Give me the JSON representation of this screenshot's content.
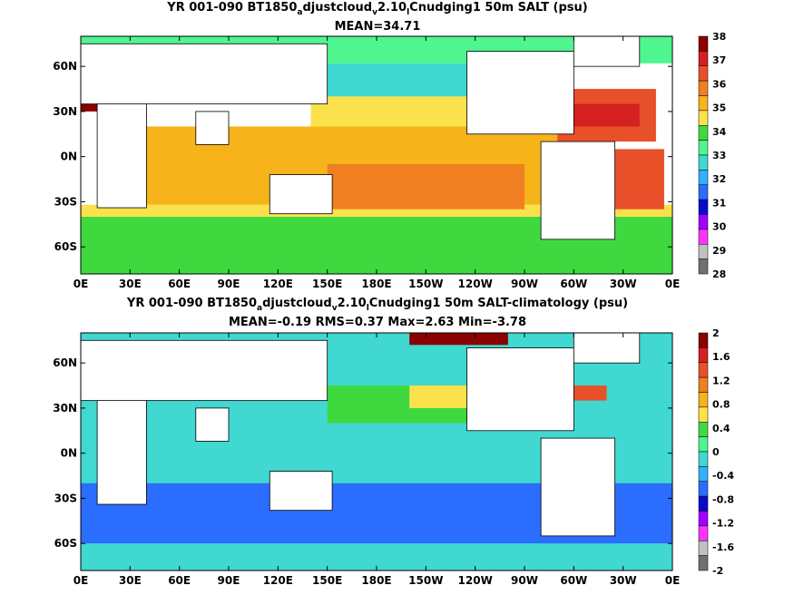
{
  "chart_data": [
    {
      "type": "heatmap",
      "title_parts": [
        "YR 001-090 BT1850",
        "a",
        "djustcloud",
        "v",
        "2.10",
        "l",
        "Cnudging1 50m SALT (psu)"
      ],
      "subtitle": "MEAN=34.71",
      "x_tick_labels": [
        "0E",
        "30E",
        "60E",
        "90E",
        "120E",
        "150E",
        "180E",
        "150W",
        "120W",
        "90W",
        "60W",
        "30W",
        "0E"
      ],
      "y_tick_labels": [
        "60N",
        "30N",
        "0N",
        "30S",
        "60S"
      ],
      "y_tick_values": [
        60,
        30,
        0,
        -30,
        -60
      ],
      "xlim": [
        0,
        360
      ],
      "ylim": [
        -78,
        80
      ],
      "colorbar_levels": [
        "38",
        "37",
        "36",
        "35",
        "34",
        "33",
        "32",
        "31",
        "30",
        "29",
        "28"
      ],
      "colorbar_colors": [
        "#8b0000",
        "#d42020",
        "#e8502a",
        "#f07f22",
        "#f7b31a",
        "#fbe14c",
        "#3fd93f",
        "#4ff58f",
        "#40d8d0",
        "#30b0ff",
        "#2a6dff",
        "#0a0acc",
        "#a000ff",
        "#ff33ff",
        "#c0c0c0",
        "#707070"
      ],
      "colorbar_boxes": 16,
      "regions": [
        {
          "lon": [
            0,
            360
          ],
          "lat": [
            -78,
            -40
          ],
          "value": 34.0
        },
        {
          "lon": [
            0,
            360
          ],
          "lat": [
            -40,
            -32
          ],
          "value": 34.6
        },
        {
          "lon": [
            40,
            290
          ],
          "lat": [
            -32,
            20
          ],
          "value": 34.9
        },
        {
          "lon": [
            150,
            270
          ],
          "lat": [
            -35,
            -5
          ],
          "value": 35.6
        },
        {
          "lon": [
            50,
            100
          ],
          "lat": [
            -30,
            -5
          ],
          "value": 35.5
        },
        {
          "lon": [
            140,
            250
          ],
          "lat": [
            20,
            40
          ],
          "value": 34.8
        },
        {
          "lon": [
            150,
            240
          ],
          "lat": [
            40,
            62
          ],
          "value": 33.0
        },
        {
          "lon": [
            290,
            350
          ],
          "lat": [
            10,
            45
          ],
          "value": 36.6
        },
        {
          "lon": [
            300,
            340
          ],
          "lat": [
            20,
            35
          ],
          "value": 37.2
        },
        {
          "lon": [
            320,
            355
          ],
          "lat": [
            -35,
            5
          ],
          "value": 36.2
        },
        {
          "lon": [
            0,
            360
          ],
          "lat": [
            62,
            80
          ],
          "value": 33.2
        },
        {
          "lon": [
            0,
            30
          ],
          "lat": [
            30,
            45
          ],
          "value": 38.0
        }
      ],
      "land": [
        {
          "lon": [
            10,
            40
          ],
          "lat": [
            -34,
            35
          ]
        },
        {
          "lon": [
            0,
            150
          ],
          "lat": [
            35,
            75
          ]
        },
        {
          "lon": [
            70,
            90
          ],
          "lat": [
            8,
            30
          ]
        },
        {
          "lon": [
            115,
            153
          ],
          "lat": [
            -38,
            -12
          ]
        },
        {
          "lon": [
            235,
            300
          ],
          "lat": [
            15,
            70
          ]
        },
        {
          "lon": [
            280,
            325
          ],
          "lat": [
            -55,
            10
          ]
        },
        {
          "lon": [
            300,
            340
          ],
          "lat": [
            60,
            80
          ]
        }
      ]
    },
    {
      "type": "heatmap",
      "title_parts": [
        "YR 001-090 BT1850",
        "a",
        "djustcloud",
        "v",
        "2.10",
        "l",
        "Cnudging1 50m SALT-climatology (psu)"
      ],
      "subtitle": "MEAN=-0.19   RMS=0.37   Max=2.63   Min=-3.78",
      "x_tick_labels": [
        "0E",
        "30E",
        "60E",
        "90E",
        "120E",
        "150E",
        "180E",
        "150W",
        "120W",
        "90W",
        "60W",
        "30W",
        "0E"
      ],
      "y_tick_labels": [
        "60N",
        "30N",
        "0N",
        "30S",
        "60S"
      ],
      "y_tick_values": [
        60,
        30,
        0,
        -30,
        -60
      ],
      "xlim": [
        0,
        360
      ],
      "ylim": [
        -78,
        80
      ],
      "colorbar_levels": [
        "2",
        "1.6",
        "1.2",
        "0.8",
        "0.4",
        "0",
        "-0.4",
        "-0.8",
        "-1.2",
        "-1.6",
        "-2"
      ],
      "colorbar_colors": [
        "#8b0000",
        "#d42020",
        "#e8502a",
        "#f07f22",
        "#f7b31a",
        "#fbe14c",
        "#3fd93f",
        "#4ff58f",
        "#40d8d0",
        "#30b0ff",
        "#2a6dff",
        "#0a0acc",
        "#a000ff",
        "#ff33ff",
        "#c0c0c0",
        "#707070"
      ],
      "colorbar_boxes": 20,
      "regions": [
        {
          "lon": [
            0,
            360
          ],
          "lat": [
            -78,
            80
          ],
          "value": -0.15
        },
        {
          "lon": [
            0,
            360
          ],
          "lat": [
            -60,
            -20
          ],
          "value": -0.5
        },
        {
          "lon": [
            40,
            280
          ],
          "lat": [
            -15,
            15
          ],
          "value": -0.1
        },
        {
          "lon": [
            150,
            270
          ],
          "lat": [
            20,
            45
          ],
          "value": 0.3
        },
        {
          "lon": [
            200,
            250
          ],
          "lat": [
            30,
            45
          ],
          "value": 0.6
        },
        {
          "lon": [
            200,
            260
          ],
          "lat": [
            72,
            80
          ],
          "value": 1.8
        },
        {
          "lon": [
            290,
            320
          ],
          "lat": [
            35,
            45
          ],
          "value": 1.4
        }
      ],
      "land": [
        {
          "lon": [
            10,
            40
          ],
          "lat": [
            -34,
            35
          ]
        },
        {
          "lon": [
            0,
            150
          ],
          "lat": [
            35,
            75
          ]
        },
        {
          "lon": [
            70,
            90
          ],
          "lat": [
            8,
            30
          ]
        },
        {
          "lon": [
            115,
            153
          ],
          "lat": [
            -38,
            -12
          ]
        },
        {
          "lon": [
            235,
            300
          ],
          "lat": [
            15,
            70
          ]
        },
        {
          "lon": [
            280,
            325
          ],
          "lat": [
            -55,
            10
          ]
        },
        {
          "lon": [
            300,
            340
          ],
          "lat": [
            60,
            80
          ]
        }
      ]
    }
  ]
}
